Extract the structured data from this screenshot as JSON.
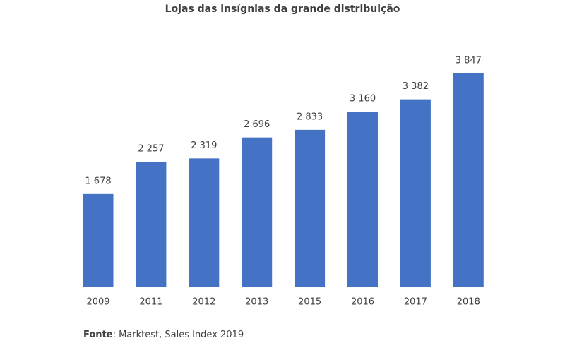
{
  "chart_data": {
    "type": "bar",
    "title": "Lojas das insígnias da grande distribuição",
    "categories": [
      "2009",
      "2011",
      "2012",
      "2013",
      "2015",
      "2016",
      "2017",
      "2018"
    ],
    "values": [
      1678,
      2257,
      2319,
      2696,
      2833,
      3160,
      3382,
      3847
    ],
    "value_labels": [
      "1 678",
      "2 257",
      "2 319",
      "2 696",
      "2 833",
      "3 160",
      "3 382",
      "3 847"
    ],
    "color": "#4472c4",
    "source_label": "Fonte",
    "source": ": Marktest, Sales Index 2019"
  }
}
